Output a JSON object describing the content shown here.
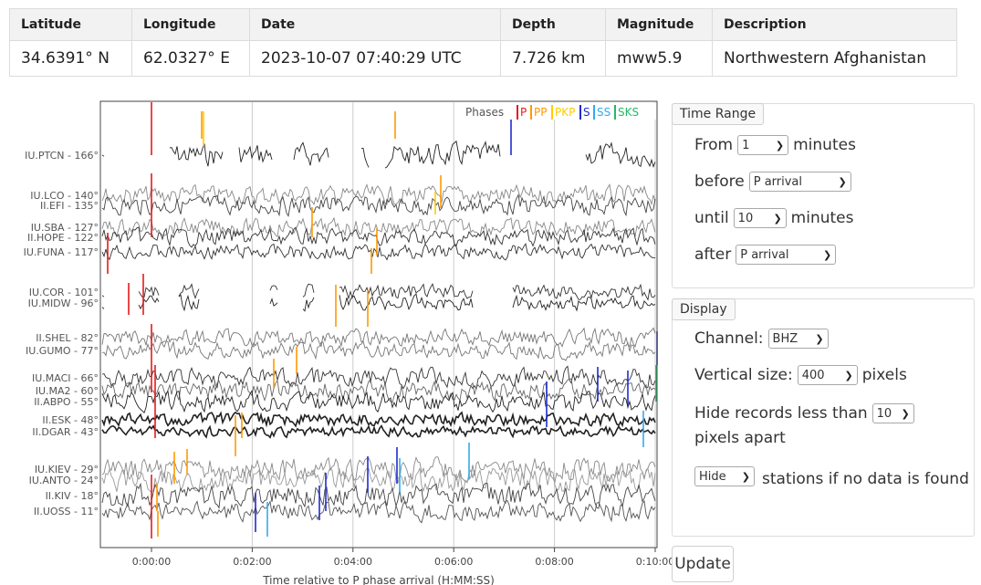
{
  "event_table": {
    "headers": [
      "Latitude",
      "Longitude",
      "Date",
      "Depth",
      "Magnitude",
      "Description"
    ],
    "values": [
      "34.6391° N",
      "62.0327° E",
      "2023-10-07 07:40:29 UTC",
      "7.726 km",
      "mww5.9",
      "Northwestern Afghanistan"
    ]
  },
  "plot": {
    "phases_label": "Phases",
    "phases": [
      {
        "name": "P",
        "color": "#e41a1c"
      },
      {
        "name": "PP",
        "color": "#ff9900"
      },
      {
        "name": "PKP",
        "color": "#ffcc00"
      },
      {
        "name": "S",
        "color": "#1f2bd1"
      },
      {
        "name": "SS",
        "color": "#33aaee"
      },
      {
        "name": "SKS",
        "color": "#22bb66"
      }
    ],
    "x_ticks": [
      "0:00:00",
      "0:02:00",
      "0:04:00",
      "0:06:00",
      "0:08:00",
      "0:10:00"
    ],
    "xlabel": "Time relative to P phase arrival (H:MM:SS)",
    "stations": [
      {
        "label": "IU.PTCN - 166°"
      },
      {
        "label": "IU.LCO - 140°"
      },
      {
        "label": "II.EFI - 135°"
      },
      {
        "label": "IU.SBA - 127°"
      },
      {
        "label": "II.HOPE - 122°"
      },
      {
        "label": "IU.FUNA - 117°"
      },
      {
        "label": "IU.COR - 101°"
      },
      {
        "label": "IU.MIDW - 96°"
      },
      {
        "label": "II.SHEL - 82°"
      },
      {
        "label": "IU.GUMO - 77°"
      },
      {
        "label": "IU.MACI - 66°"
      },
      {
        "label": "IU.MA2 - 60°"
      },
      {
        "label": "II.ABPO - 55°"
      },
      {
        "label": "II.ESK - 48°"
      },
      {
        "label": "II.DGAR - 43°"
      },
      {
        "label": "IU.KIEV - 29°"
      },
      {
        "label": "IU.ANTO - 24°"
      },
      {
        "label": "II.KIV - 18°"
      },
      {
        "label": "II.UOSS - 11°"
      }
    ]
  },
  "time_range": {
    "legend": "Time Range",
    "from_label": "From",
    "from_value": "1",
    "from_unit": "minutes",
    "before_label": "before",
    "before_value": "P arrival",
    "until_label": "until",
    "until_value": "10",
    "until_unit": "minutes",
    "after_label": "after",
    "after_value": "P arrival"
  },
  "display": {
    "legend": "Display",
    "channel_label": "Channel:",
    "channel_value": "BHZ",
    "vsize_label": "Vertical size:",
    "vsize_value": "400",
    "vsize_unit": "pixels",
    "hide_label": "Hide records less than",
    "hide_value": "10",
    "hide_unit": "pixels apart",
    "hide_stations_value": "Hide",
    "hide_stations_text": "stations if no data is found"
  },
  "update_label": "Update"
}
